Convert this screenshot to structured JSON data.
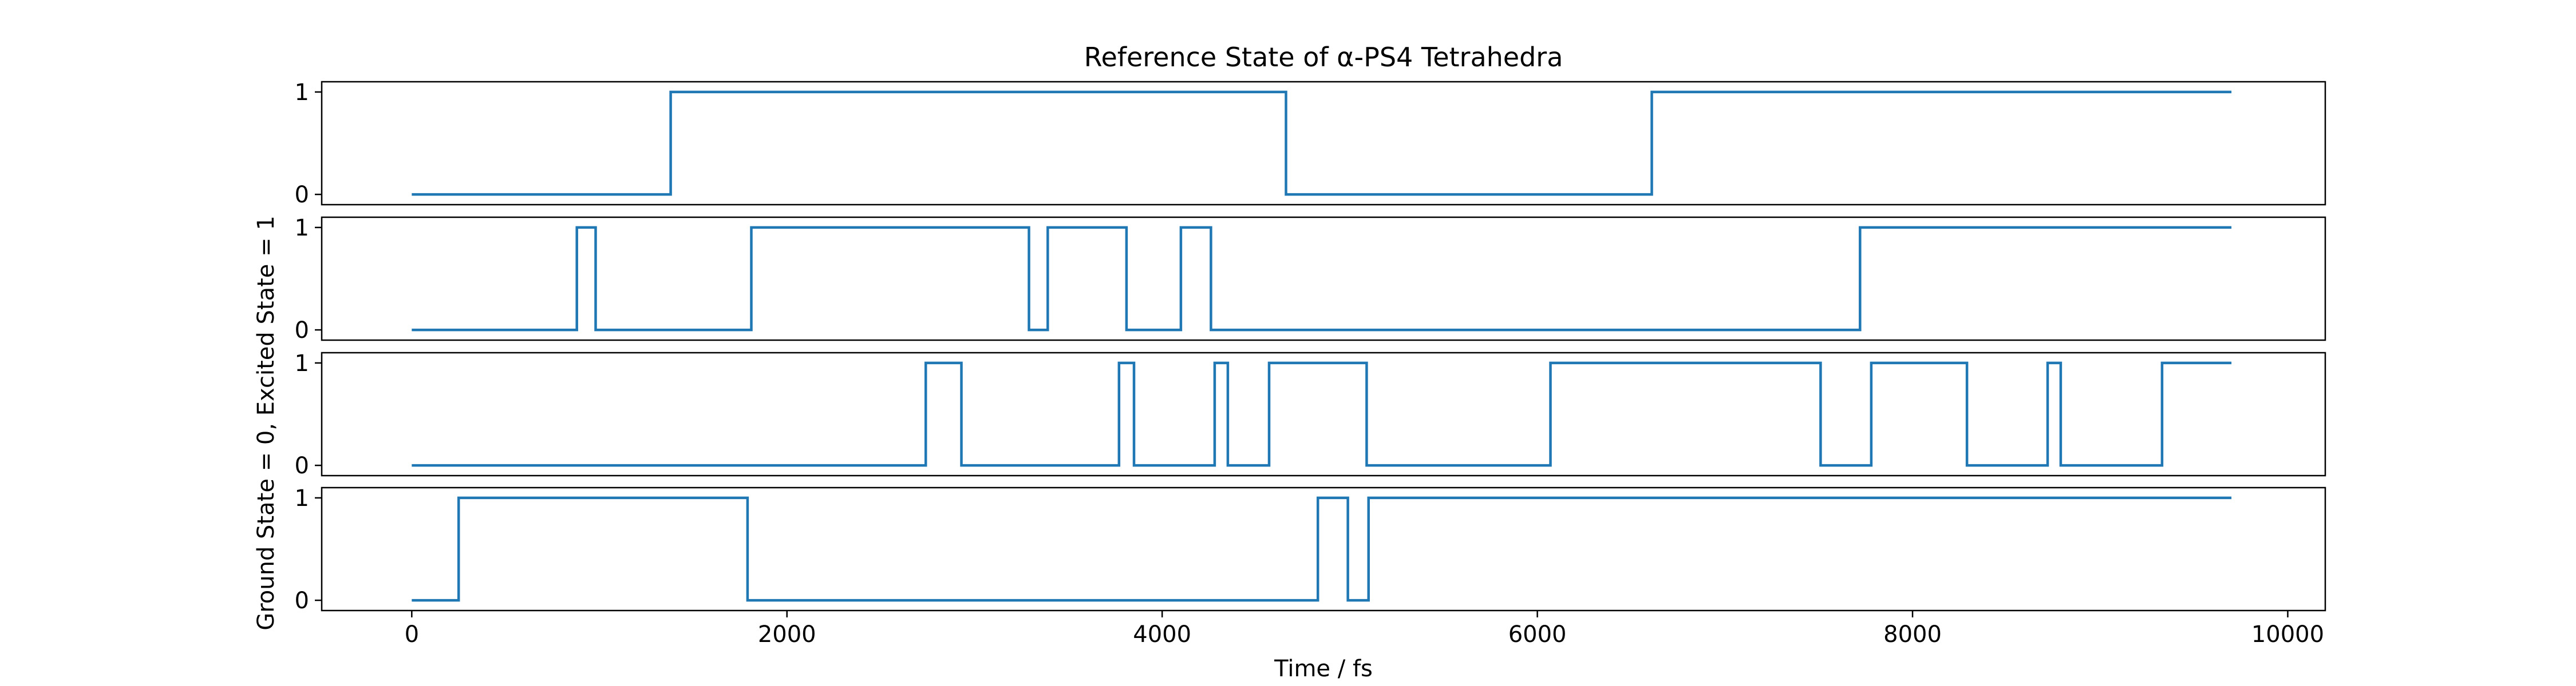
{
  "chart_data": {
    "type": "line",
    "title": "Reference State of α-PS4 Tetrahedra",
    "xlabel": "Time / fs",
    "ylabel": "Ground State = 0, Excited State = 1",
    "xlim": [
      -480,
      10200
    ],
    "ylim": [
      -0.1,
      1.1
    ],
    "xticks": [
      0,
      2000,
      4000,
      6000,
      8000,
      10000
    ],
    "yticks": [
      0,
      1
    ],
    "grid": false,
    "line_color": "#1f77b4",
    "step": "post",
    "panels": [
      {
        "x": [
          0,
          1380,
          4660,
          6610,
          9700
        ],
        "y": [
          0,
          1,
          0,
          1,
          1
        ]
      },
      {
        "x": [
          0,
          880,
          980,
          1810,
          3290,
          3390,
          3810,
          4100,
          4260,
          7720,
          9700
        ],
        "y": [
          0,
          1,
          0,
          1,
          0,
          1,
          0,
          1,
          0,
          1,
          1
        ]
      },
      {
        "x": [
          0,
          2740,
          2930,
          3770,
          3850,
          4280,
          4350,
          4570,
          5090,
          6070,
          7510,
          7780,
          8290,
          8720,
          8790,
          9330,
          9700
        ],
        "y": [
          0,
          1,
          0,
          1,
          0,
          1,
          0,
          1,
          0,
          1,
          0,
          1,
          0,
          1,
          0,
          1,
          1
        ]
      },
      {
        "x": [
          0,
          250,
          1790,
          4830,
          4990,
          5100,
          9700
        ],
        "y": [
          0,
          1,
          0,
          1,
          0,
          1,
          1
        ]
      }
    ]
  }
}
